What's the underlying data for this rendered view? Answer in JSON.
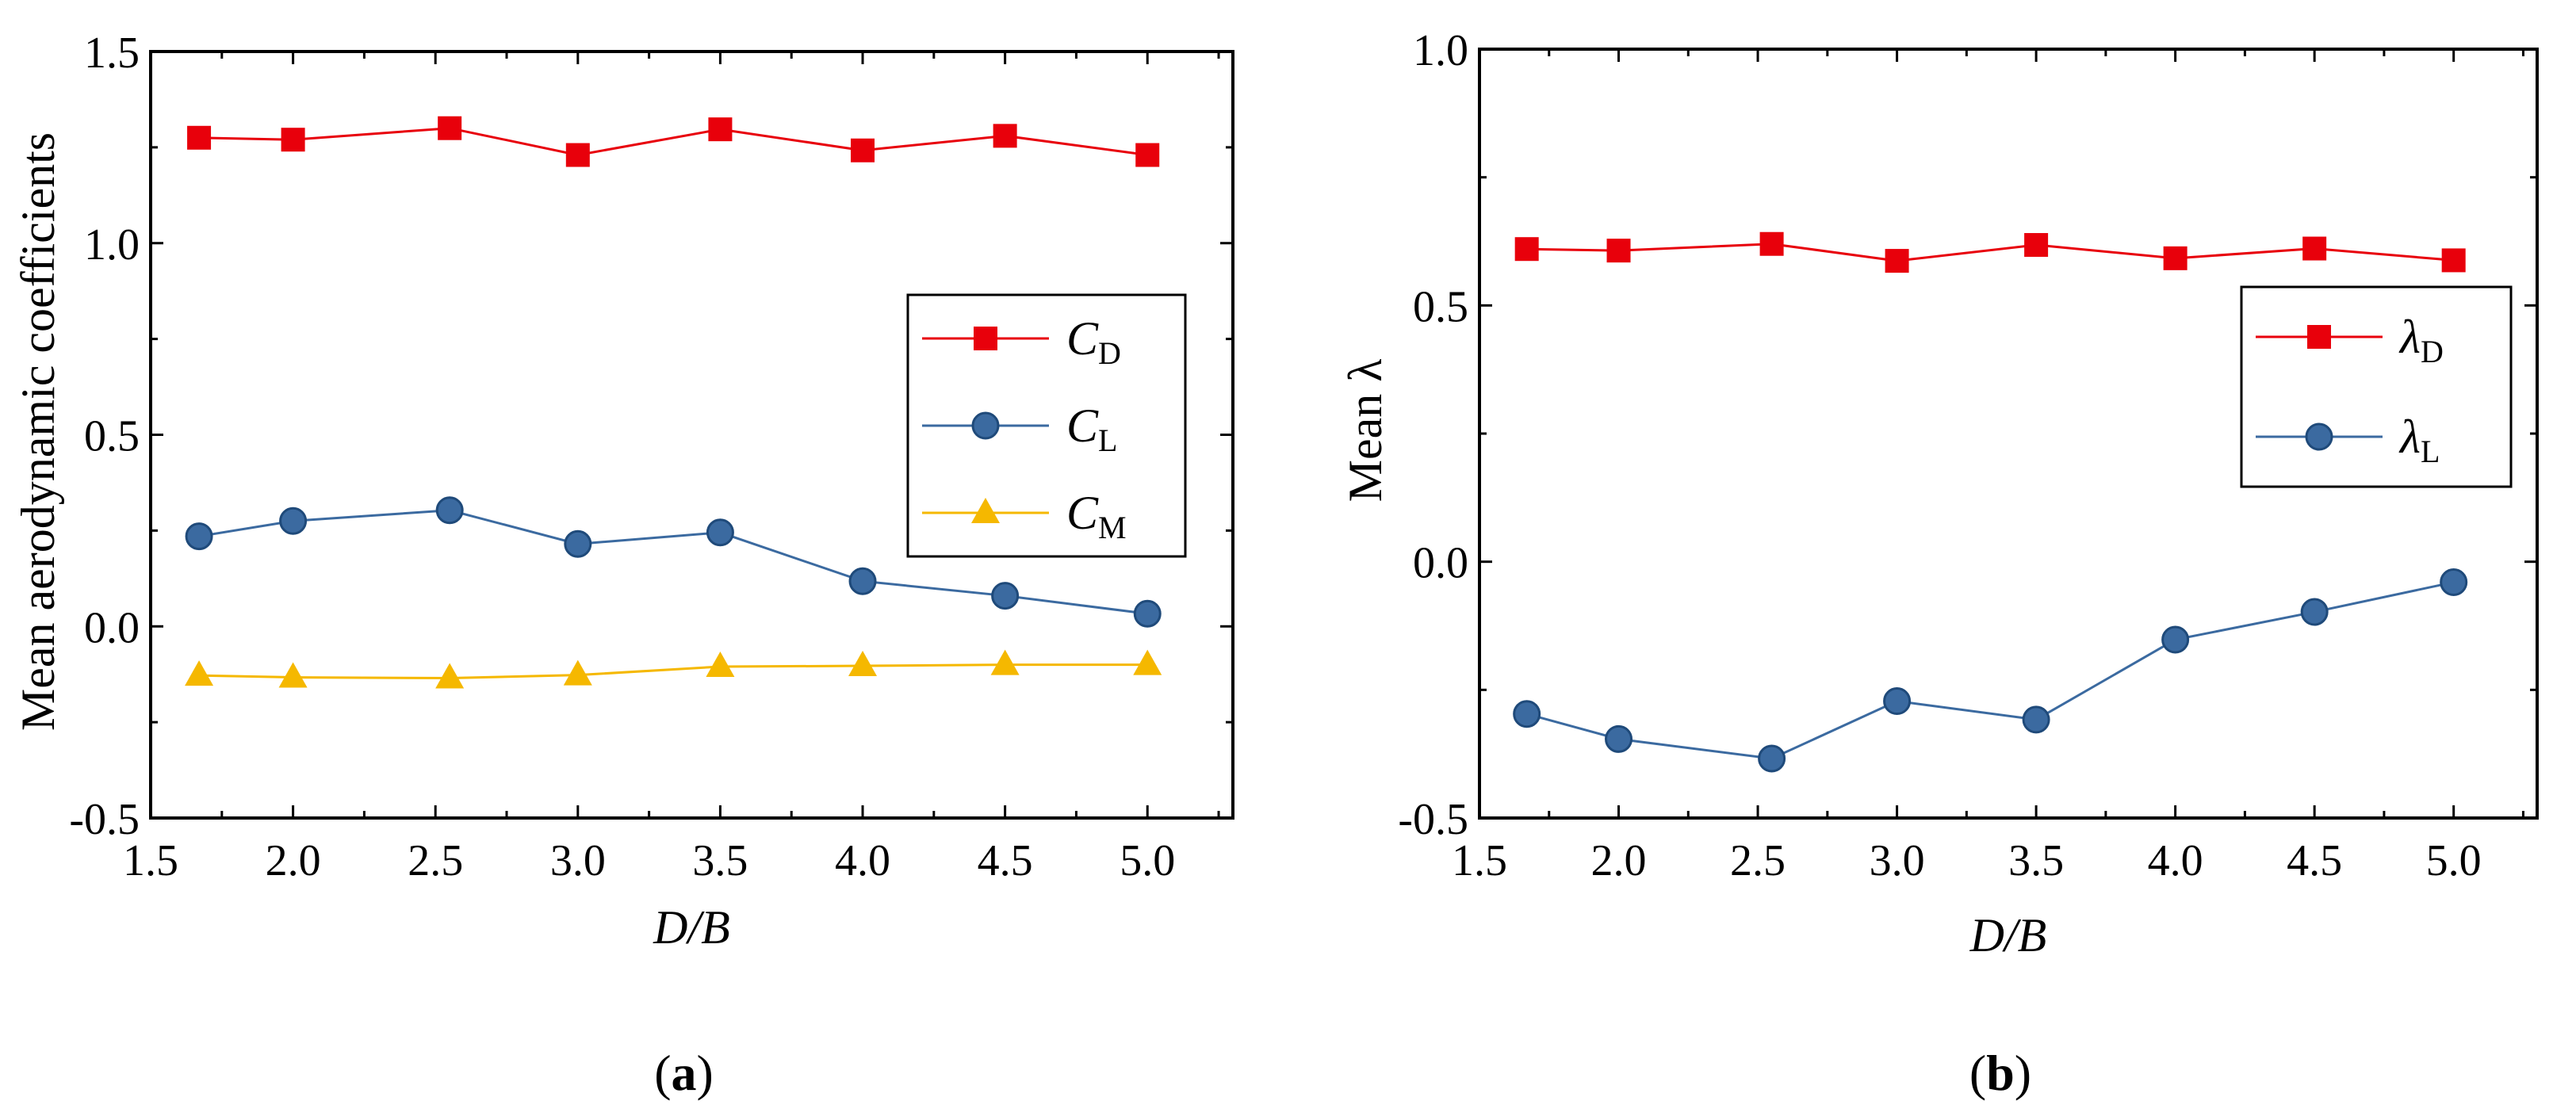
{
  "chart_data": [
    {
      "type": "line",
      "panel_label": "a",
      "xlabel": "D/B",
      "ylabel": "Mean aerodynamic coefficients",
      "xlim": [
        1.5,
        5.3
      ],
      "ylim": [
        -0.5,
        1.5
      ],
      "xticks": [
        "1.5",
        "2.0",
        "2.5",
        "3.0",
        "3.5",
        "4.0",
        "4.5",
        "5.0"
      ],
      "yticks": [
        "-0.5",
        "0.0",
        "0.5",
        "1.0",
        "1.5"
      ],
      "legend_position": "right",
      "x": [
        1.67,
        2.0,
        2.55,
        3.0,
        3.5,
        4.0,
        4.5,
        5.0
      ],
      "series": [
        {
          "name": "C",
          "sub": "D",
          "color": "#e8000b",
          "marker": "square",
          "values": [
            1.275,
            1.27,
            1.3,
            1.23,
            1.297,
            1.242,
            1.28,
            1.23
          ]
        },
        {
          "name": "C",
          "sub": "L",
          "color": "#3b6aa0",
          "marker": "circle",
          "values": [
            0.235,
            0.275,
            0.303,
            0.215,
            0.245,
            0.118,
            0.08,
            0.033
          ]
        },
        {
          "name": "C",
          "sub": "M",
          "color": "#f5b800",
          "marker": "triangle",
          "values": [
            -0.128,
            -0.133,
            -0.135,
            -0.127,
            -0.105,
            -0.103,
            -0.1,
            -0.1
          ]
        }
      ]
    },
    {
      "type": "line",
      "panel_label": "b",
      "xlabel": "D/B",
      "ylabel": "Mean λ",
      "xlim": [
        1.5,
        5.3
      ],
      "ylim": [
        -0.5,
        1.0
      ],
      "xticks": [
        "1.5",
        "2.0",
        "2.5",
        "3.0",
        "3.5",
        "4.0",
        "4.5",
        "5.0"
      ],
      "yticks": [
        "-0.5",
        "0.0",
        "0.5",
        "1.0"
      ],
      "legend_position": "right",
      "x": [
        1.67,
        2.0,
        2.55,
        3.0,
        3.5,
        4.0,
        4.5,
        5.0
      ],
      "series": [
        {
          "name": "λ",
          "sub": "D",
          "color": "#e8000b",
          "marker": "square",
          "values": [
            0.61,
            0.607,
            0.62,
            0.587,
            0.618,
            0.592,
            0.611,
            0.588
          ]
        },
        {
          "name": "λ",
          "sub": "L",
          "color": "#3b6aa0",
          "marker": "circle",
          "values": [
            -0.297,
            -0.346,
            -0.384,
            -0.272,
            -0.308,
            -0.152,
            -0.098,
            -0.04
          ]
        }
      ]
    }
  ]
}
